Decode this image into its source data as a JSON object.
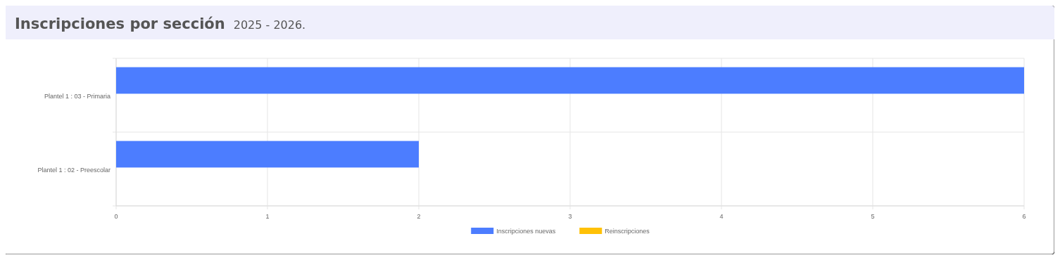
{
  "chart_data": {
    "type": "bar",
    "orientation": "horizontal",
    "title": "Inscripciones por sección",
    "subtitle": "2025 - 2026.",
    "categories": [
      "Plantel 1 : 03 - Primaria",
      "Plantel 1 : 02 - Preescolar"
    ],
    "series": [
      {
        "name": "Inscripciones nuevas",
        "color": "#4c7dff",
        "values": [
          6,
          2
        ]
      },
      {
        "name": "Reinscripciones",
        "color": "#ffc107",
        "values": [
          0,
          0
        ]
      }
    ],
    "xlim": [
      0,
      6
    ],
    "xticks": [
      0,
      1,
      2,
      3,
      4,
      5,
      6
    ],
    "grid": true,
    "legend": "bottom"
  }
}
